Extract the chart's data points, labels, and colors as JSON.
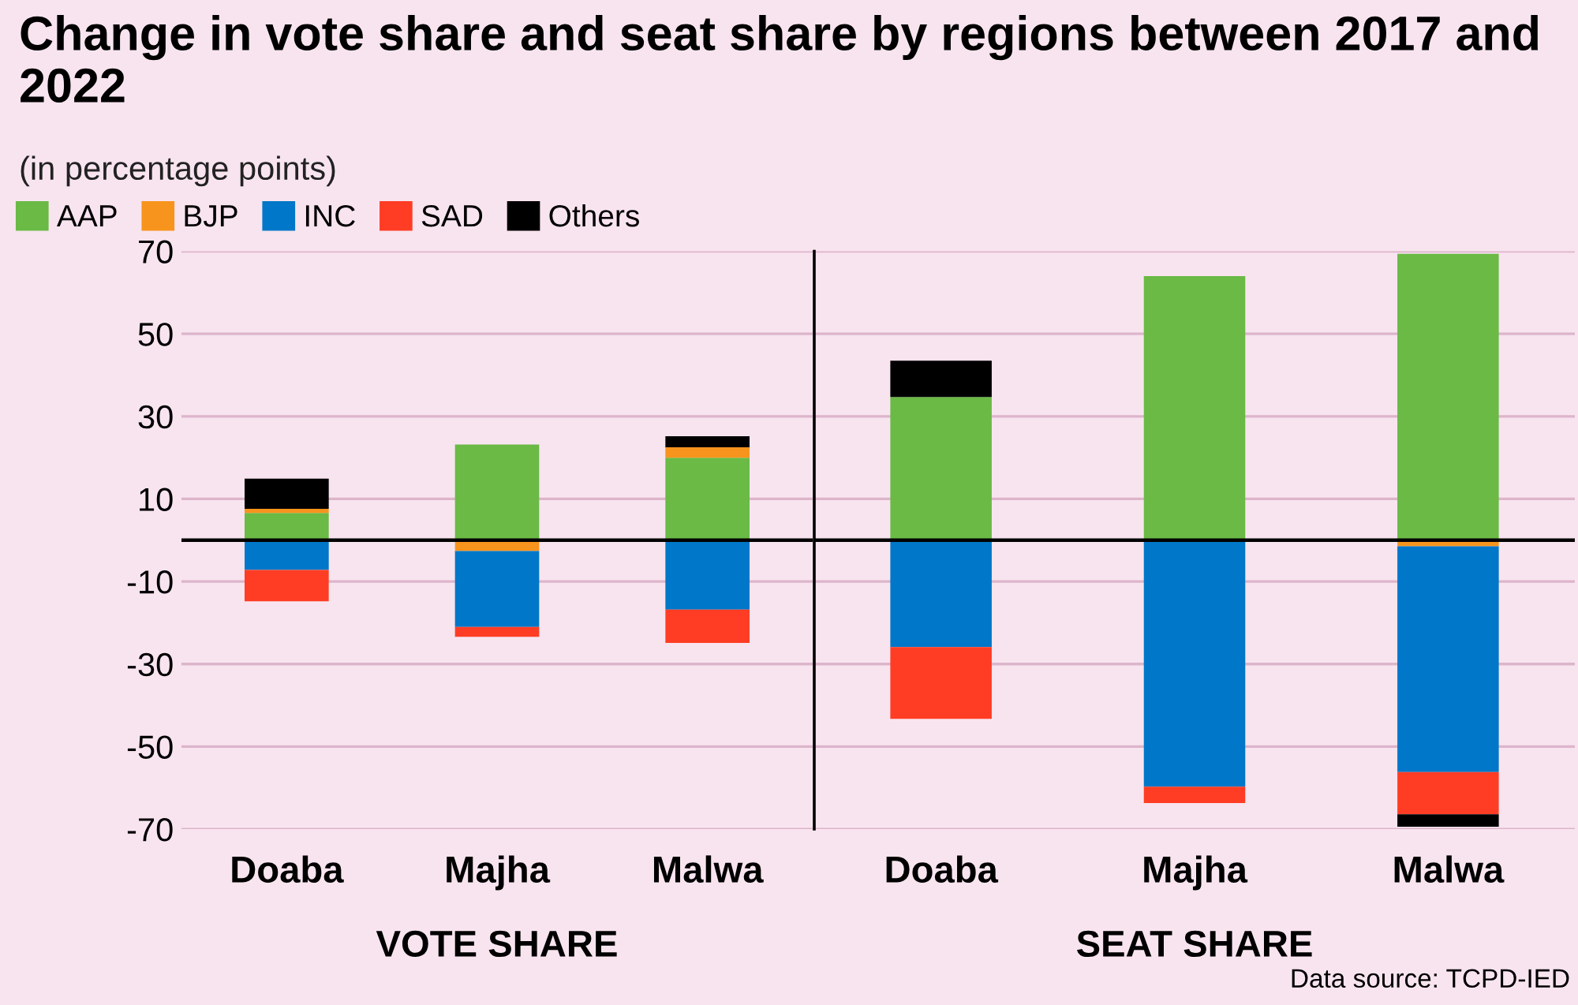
{
  "chart_data": [
    {
      "type": "bar",
      "title": "Change in vote share and seat share by regions between 2017 and 2022",
      "subtitle": "(in percentage points)",
      "xlabel": "VOTE SHARE",
      "categories": [
        "Doaba",
        "Majha",
        "Malwa"
      ],
      "stacked": true,
      "legend": "top",
      "grid": "y",
      "series": [
        {
          "name": "AAP",
          "color": "#6aba45",
          "values": [
            6.6,
            23.2,
            20
          ]
        },
        {
          "name": "BJP",
          "color": "#f7941d",
          "values": [
            1,
            -2.6,
            2.5
          ]
        },
        {
          "name": "INC",
          "color": "#0077c8",
          "values": [
            -7.2,
            -18.4,
            -16.8
          ]
        },
        {
          "name": "SAD",
          "color": "#ff3d24",
          "values": [
            -7.6,
            -2.4,
            -8.1
          ]
        },
        {
          "name": "Others",
          "color": "#000000",
          "values": [
            7.3,
            null,
            2.7
          ]
        }
      ],
      "ylim": [
        -70,
        70
      ],
      "yticks": [
        {
          "value": -70,
          "label": "-70"
        },
        {
          "value": -50,
          "label": "-50"
        },
        {
          "value": -30,
          "label": "-30"
        },
        {
          "value": -10,
          "label": "-10"
        },
        10,
        30,
        50,
        70
      ],
      "ref_lines": [
        {
          "axis": "y",
          "value": 0,
          "color": "#000000"
        }
      ]
    },
    {
      "type": "bar",
      "xlabel": "SEAT SHARE",
      "categories": [
        "Doaba",
        "Majha",
        "Malwa"
      ],
      "stacked": true,
      "grid": "y",
      "tick_labels": "x",
      "series": [
        {
          "color": "#6aba45",
          "values": [
            34.7,
            64,
            69.4
          ]
        },
        {
          "color": "#f7941d",
          "values": [
            null,
            null,
            -1.5
          ]
        },
        {
          "color": "#0077c8",
          "values": [
            -25.9,
            -59.7,
            -54.7
          ]
        },
        {
          "color": "#ff3d24",
          "values": [
            -17.4,
            -4,
            -10.2
          ]
        },
        {
          "color": "#000000",
          "values": [
            8.8,
            null,
            -3
          ]
        }
      ],
      "ylim": [
        -70,
        70
      ],
      "yticks": [
        -70,
        -50,
        -30,
        -10,
        10,
        30,
        50,
        70
      ],
      "ref_lines": [
        {
          "axis": "y",
          "value": 0,
          "color": "#000000"
        }
      ],
      "annotations": [
        "Data source: TCPD-IED"
      ]
    }
  ]
}
